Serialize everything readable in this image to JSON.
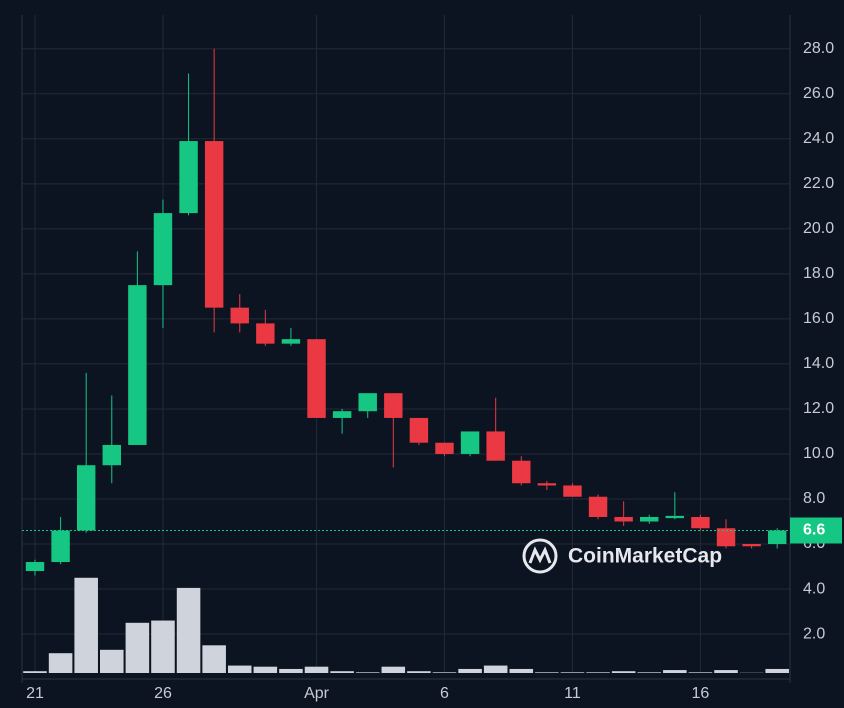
{
  "chart_data": {
    "type": "candlestick",
    "categories": [
      "21",
      null,
      null,
      null,
      null,
      "26",
      null,
      null,
      null,
      null,
      null,
      "Apr",
      null,
      null,
      null,
      null,
      "6",
      null,
      null,
      null,
      null,
      "11",
      null,
      null,
      null,
      null,
      "16",
      null,
      null,
      null
    ],
    "open": [
      4.8,
      5.2,
      6.6,
      9.5,
      10.4,
      17.5,
      20.7,
      23.9,
      16.5,
      15.8,
      14.9,
      15.1,
      11.6,
      11.9,
      12.7,
      11.6,
      10.5,
      10.0,
      11.0,
      9.7,
      8.7,
      8.6,
      8.1,
      7.2,
      7.0,
      7.15,
      7.2,
      6.7,
      6.0,
      6.0
    ],
    "high": [
      5.3,
      7.2,
      13.6,
      12.6,
      19.0,
      21.3,
      26.9,
      28.0,
      17.1,
      16.4,
      15.6,
      15.1,
      12.0,
      12.7,
      12.7,
      11.6,
      10.5,
      11.0,
      12.5,
      9.9,
      8.8,
      8.7,
      8.2,
      7.9,
      7.3,
      8.3,
      7.3,
      7.1,
      6.0,
      6.7
    ],
    "low": [
      4.6,
      5.1,
      6.5,
      8.7,
      10.4,
      15.6,
      20.6,
      15.4,
      15.4,
      14.8,
      14.8,
      11.6,
      10.9,
      11.6,
      9.4,
      10.4,
      9.9,
      9.9,
      9.7,
      8.6,
      8.4,
      8.1,
      7.1,
      6.8,
      6.9,
      7.1,
      6.6,
      5.8,
      5.8,
      5.8
    ],
    "close": [
      5.2,
      6.6,
      9.5,
      10.4,
      17.5,
      20.7,
      23.9,
      16.5,
      15.8,
      14.9,
      15.1,
      11.6,
      11.9,
      12.7,
      11.6,
      10.5,
      10.0,
      11.0,
      9.7,
      8.7,
      8.6,
      8.1,
      7.2,
      7.0,
      7.2,
      7.25,
      6.7,
      5.9,
      5.9,
      6.6
    ],
    "volume": [
      0.35,
      1.15,
      4.5,
      1.3,
      2.5,
      2.6,
      4.05,
      1.5,
      0.6,
      0.55,
      0.45,
      0.55,
      0.35,
      0.3,
      0.55,
      0.35,
      0.3,
      0.45,
      0.6,
      0.45,
      0.3,
      0.3,
      0.3,
      0.35,
      0.3,
      0.4,
      0.3,
      0.4,
      0.28,
      0.45
    ],
    "up_color": "#16c784",
    "down_color": "#ea3943",
    "volume_color": "#cfd3dc",
    "last_price": 6.6,
    "watermark": "CoinMarketCap",
    "ylim": [
      0.27,
      29.5
    ],
    "yticks": [
      {
        "value": 2,
        "label": "2.0"
      },
      {
        "value": 4,
        "label": "4.0"
      },
      {
        "value": 6,
        "label": "6.0"
      },
      {
        "value": 8,
        "label": "8.0"
      },
      {
        "value": 10,
        "label": "10.0"
      },
      {
        "value": 12,
        "label": "12.0"
      },
      {
        "value": 14,
        "label": "14.0"
      },
      {
        "value": 16,
        "label": "16.0"
      },
      {
        "value": 18,
        "label": "18.0"
      },
      {
        "value": 20,
        "label": "20.0"
      },
      {
        "value": 22,
        "label": "22.0"
      },
      {
        "value": 24,
        "label": "24.0"
      },
      {
        "value": 26,
        "label": "26.0"
      },
      {
        "value": 28,
        "label": "28.0"
      }
    ],
    "grid": true
  }
}
